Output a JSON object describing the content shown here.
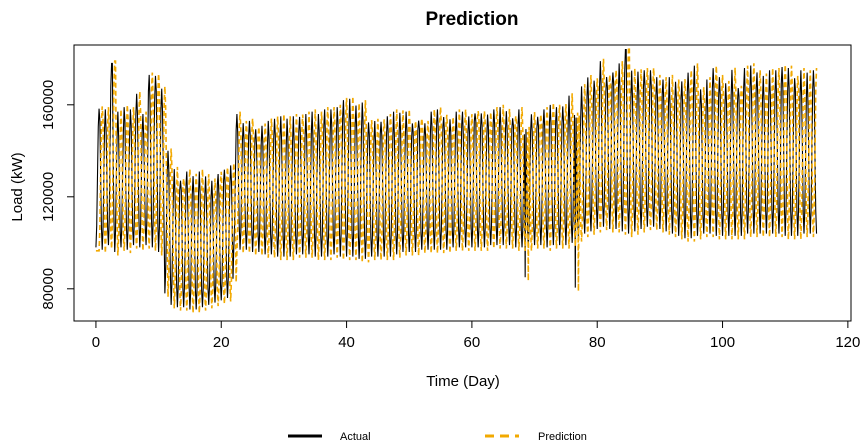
{
  "chart_data": {
    "type": "line",
    "title": "Prediction",
    "xlabel": "Time (Day)",
    "ylabel": "Load (kW)",
    "xlim": [
      -3.5,
      120.5
    ],
    "ylim": [
      66000,
      186000
    ],
    "x_ticks": [
      0,
      20,
      40,
      60,
      80,
      100,
      120
    ],
    "y_ticks": [
      80000,
      120000,
      160000
    ],
    "y_tick_labels": [
      "80000",
      "120000",
      "160000"
    ],
    "x_range": [
      0,
      115
    ],
    "samples_per_day": 8,
    "legend": {
      "position": "bottom",
      "entries": [
        "Actual",
        "Prediction"
      ]
    },
    "series": [
      {
        "name": "Actual",
        "color": "#000000",
        "style": "solid",
        "daily_peaks": [
          160000,
          158000,
          178000,
          157000,
          159000,
          158000,
          166000,
          156000,
          173000,
          175000,
          167000,
          140000,
          132000,
          130000,
          131000,
          129000,
          131000,
          130000,
          128000,
          131000,
          134000,
          136000,
          158000,
          152000,
          153000,
          152000,
          154000,
          153000,
          154000,
          155000,
          154000,
          155000,
          157000,
          156000,
          157000,
          156000,
          158000,
          158000,
          159000,
          162000,
          164000,
          160000,
          161000,
          155000,
          154000,
          156000,
          155000,
          157000,
          158000,
          157000,
          155000,
          156000,
          155000,
          157000,
          158000,
          157000,
          156000,
          158000,
          157000,
          157000,
          159000,
          158000,
          157000,
          158000,
          159000,
          158000,
          157000,
          158000,
          158000,
          158000,
          157000,
          158000,
          160000,
          159000,
          163000,
          164000,
          166000,
          168000,
          172000,
          173000,
          179000,
          176000,
          177000,
          178000,
          184000,
          177000,
          176000,
          175000,
          175000,
          172000,
          171000,
          172000,
          170000,
          173000,
          174000,
          177000,
          168000,
          171000,
          178000,
          172000,
          172000,
          176000,
          171000,
          176000,
          178000,
          176000,
          174000,
          175000,
          175000,
          177000,
          176000,
          174000,
          175000,
          174000,
          175000,
          173000
        ],
        "daily_troughs": [
          98000,
          97000,
          99000,
          96000,
          98000,
          97000,
          99000,
          98000,
          99000,
          98000,
          96000,
          78000,
          73000,
          72000,
          72000,
          71000,
          71000,
          72000,
          73000,
          74000,
          75000,
          76000,
          98000,
          97000,
          97000,
          96000,
          96000,
          95000,
          95000,
          94000,
          94000,
          94000,
          95000,
          95000,
          95000,
          94000,
          94000,
          94000,
          95000,
          94000,
          94000,
          94000,
          93000,
          93000,
          94000,
          94000,
          94000,
          94000,
          95000,
          96000,
          96000,
          96000,
          97000,
          97000,
          97000,
          97000,
          97000,
          98000,
          98000,
          98000,
          98000,
          98000,
          98000,
          99000,
          99000,
          99000,
          99000,
          98000,
          98000,
          98000,
          99000,
          99000,
          98000,
          99000,
          99000,
          99000,
          100000,
          102000,
          104000,
          105000,
          106000,
          107000,
          106000,
          106000,
          105000,
          104000,
          105000,
          106000,
          107000,
          107000,
          106000,
          105000,
          104000,
          103000,
          102000,
          102000,
          103000,
          104000,
          104000,
          103000,
          103000,
          103000,
          103000,
          103000,
          104000,
          104000,
          104000,
          104000,
          104000,
          104000,
          103000,
          103000,
          103000,
          104000,
          104000,
          104000
        ],
        "notable_spikes": [
          {
            "day": 2.6,
            "value": 178000
          },
          {
            "day": 68.5,
            "value": 85000
          },
          {
            "day": 76.5,
            "value": 80500
          },
          {
            "day": 84.6,
            "value": 184000
          }
        ]
      },
      {
        "name": "Prediction",
        "color": "#F2A900",
        "style": "dashed",
        "lag_days": 0.5,
        "peak_offset": 1000,
        "trough_offset": 1500
      }
    ]
  }
}
